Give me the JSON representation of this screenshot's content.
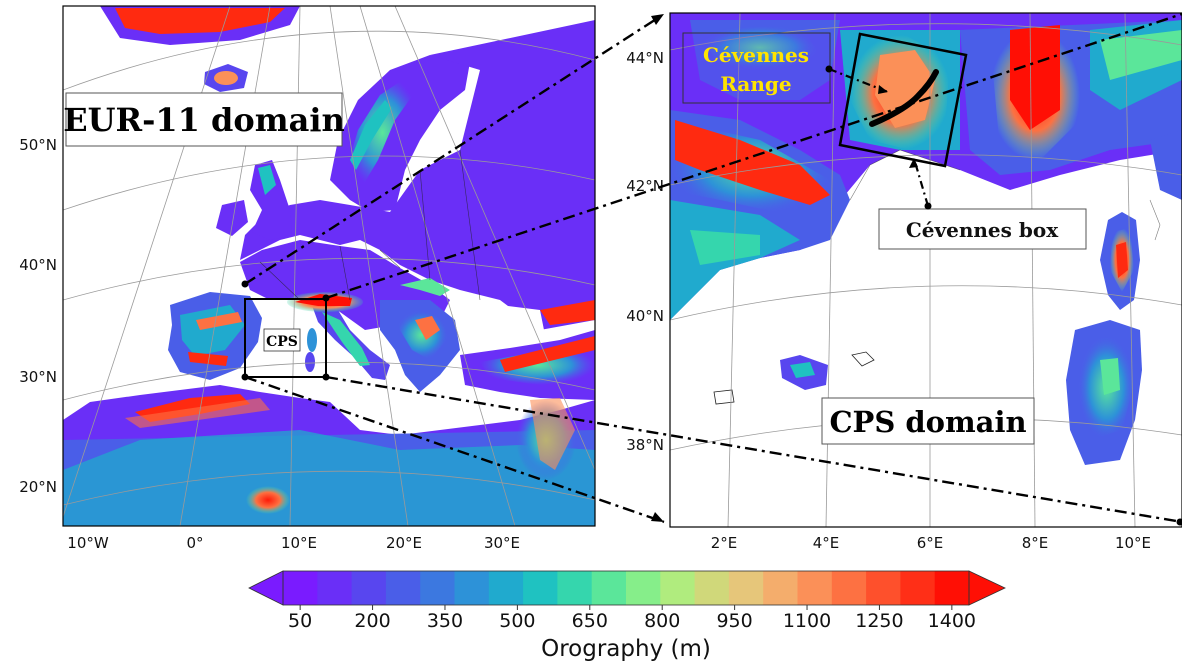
{
  "left_map": {
    "title": "EUR-11 domain",
    "inset_label": "CPS",
    "lat_ticks": [
      "50°N",
      "40°N",
      "30°N",
      "20°N"
    ],
    "lon_ticks": [
      "10°W",
      "0°",
      "10°E",
      "20°E",
      "30°E"
    ]
  },
  "right_map": {
    "title": "CPS domain",
    "range_label_line1": "Cévennes",
    "range_label_line2": "Range",
    "box_label": "Cévennes box",
    "lat_ticks": [
      "44°N",
      "42°N",
      "40°N",
      "38°N"
    ],
    "lon_ticks": [
      "2°E",
      "4°E",
      "6°E",
      "8°E",
      "10°E"
    ]
  },
  "colorbar": {
    "label": "Orography (m)",
    "ticks": [
      "50",
      "200",
      "350",
      "500",
      "650",
      "800",
      "950",
      "1100",
      "1250",
      "1400"
    ],
    "colors": [
      "#7a1bff",
      "#6a2ff7",
      "#5846ef",
      "#4a5ee8",
      "#3c78e0",
      "#2d92d8",
      "#20aace",
      "#1fc2c1",
      "#35d6ad",
      "#5be69a",
      "#86ee8a",
      "#b0ec7e",
      "#d0d87a",
      "#e6c67a",
      "#f4ad6c",
      "#fb9058",
      "#fd7142",
      "#fe502c",
      "#ff2f17",
      "#ff0f05"
    ]
  },
  "colors": {
    "ocean": "#ffffff",
    "lowland": "#6a2ff7",
    "mountain": "#ff2a10",
    "grid": "#9a9a9a"
  }
}
